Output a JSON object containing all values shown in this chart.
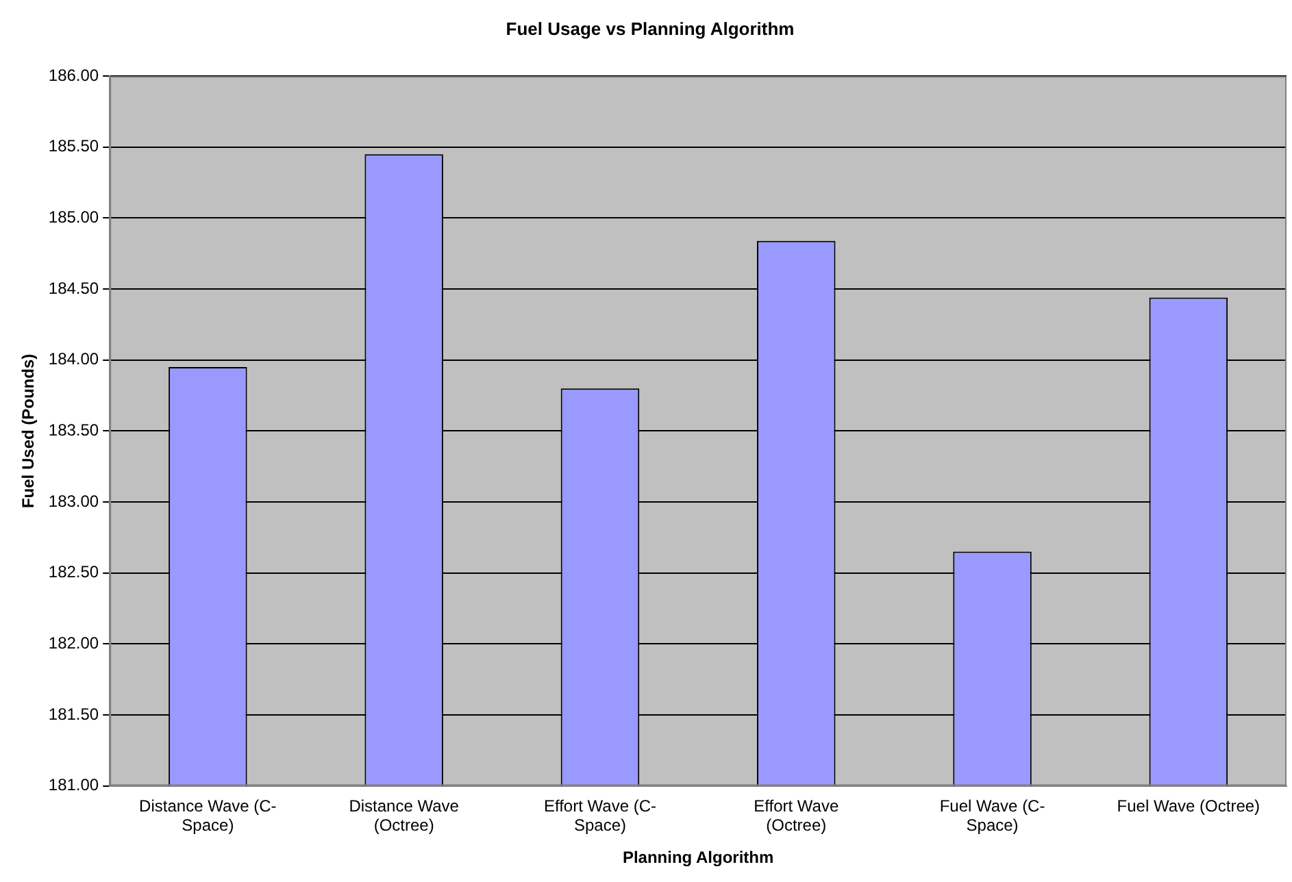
{
  "chart_data": {
    "type": "bar",
    "title": "Fuel Usage vs Planning Algorithm",
    "xlabel": "Planning Algorithm",
    "ylabel": "Fuel Used (Pounds)",
    "categories": [
      "Distance Wave (C-Space)",
      "Distance Wave (Octree)",
      "Effort Wave (C-Space)",
      "Effort Wave (Octree)",
      "Fuel Wave (C-Space)",
      "Fuel Wave (Octree)"
    ],
    "values": [
      183.95,
      185.45,
      183.8,
      184.84,
      182.65,
      184.44
    ],
    "color": "#9999ff",
    "ylim": [
      181,
      186
    ],
    "yticks": [
      {
        "value": 181,
        "label": "181.00"
      },
      {
        "value": 181.5,
        "label": "181.50"
      },
      {
        "value": 182,
        "label": "182.00"
      },
      {
        "value": 182.5,
        "label": "182.50"
      },
      {
        "value": 183,
        "label": "183.00"
      },
      {
        "value": 183.5,
        "label": "183.50"
      },
      {
        "value": 184,
        "label": "184.00"
      },
      {
        "value": 184.5,
        "label": "184.50"
      },
      {
        "value": 185,
        "label": "185.00"
      },
      {
        "value": 185.5,
        "label": "185.50"
      },
      {
        "value": 186,
        "label": "186.00"
      }
    ],
    "grid": "y",
    "legend": false
  }
}
